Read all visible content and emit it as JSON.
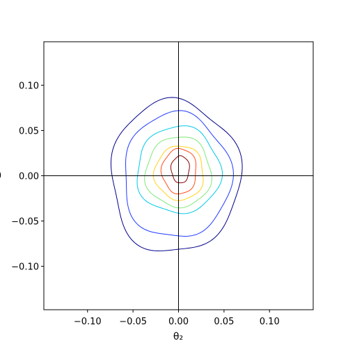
{
  "chart_data": {
    "type": "contour",
    "title": "",
    "xlabel": "θ₂",
    "ylabel": "θ",
    "xlim": [
      -0.148,
      0.148
    ],
    "ylim": [
      -0.148,
      0.148
    ],
    "x_ticks": [
      -0.1,
      -0.05,
      0.0,
      0.05,
      0.1
    ],
    "x_tick_labels": [
      "−0.10",
      "−0.05",
      "0.00",
      "0.05",
      "0.10"
    ],
    "y_ticks": [
      -0.1,
      -0.05,
      0.0,
      0.05,
      0.1
    ],
    "y_tick_labels": [
      "−0.10",
      "−0.05",
      "0.00",
      "0.05",
      "0.10"
    ],
    "crosshair": {
      "x": 0.0,
      "y": 0.0
    },
    "grid": false,
    "colormap": "jet",
    "levels": [
      {
        "name": "level-1",
        "color": "#00008b",
        "center": [
          -0.004,
          -0.001
        ],
        "rx": 0.071,
        "ry": 0.084
      },
      {
        "name": "level-2",
        "color": "#1f3bff",
        "center": [
          -0.002,
          0.0
        ],
        "rx": 0.059,
        "ry": 0.069
      },
      {
        "name": "level-3",
        "color": "#00c8e6",
        "center": [
          0.0,
          0.006
        ],
        "rx": 0.046,
        "ry": 0.048
      },
      {
        "name": "level-4",
        "color": "#7fe87a",
        "center": [
          0.0,
          0.004
        ],
        "rx": 0.036,
        "ry": 0.039
      },
      {
        "name": "level-5",
        "color": "#ffd21a",
        "center": [
          0.001,
          0.003
        ],
        "rx": 0.027,
        "ry": 0.03
      },
      {
        "name": "level-6",
        "color": "#ff4a1a",
        "center": [
          0.001,
          0.005
        ],
        "rx": 0.019,
        "ry": 0.025
      },
      {
        "name": "level-7",
        "color": "#8b0000",
        "center": [
          0.002,
          0.007
        ],
        "rx": 0.01,
        "ry": 0.015
      }
    ]
  }
}
